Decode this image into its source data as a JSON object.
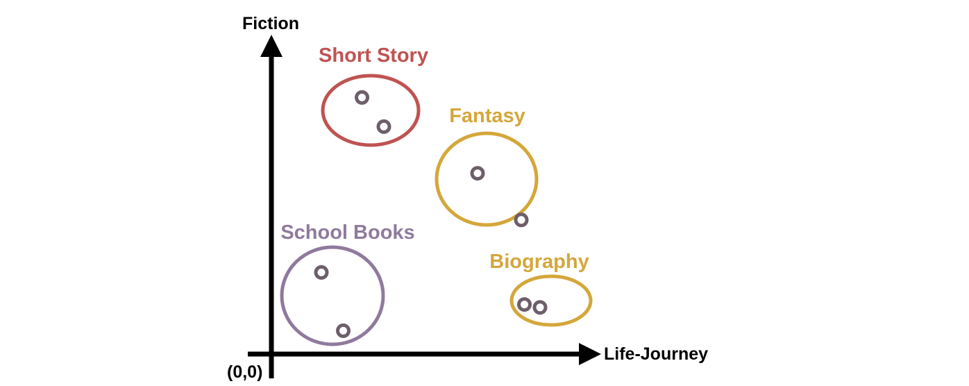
{
  "axes": {
    "y_label": "Fiction",
    "x_label": "Life-Journey",
    "origin_label": "(0,0)"
  },
  "point_color": "#6d5f6a",
  "clusters": [
    {
      "label": "Short Story",
      "color": "#bf5351",
      "points": [
        {
          "x": 0.29,
          "y": 0.88
        },
        {
          "x": 0.36,
          "y": 0.78
        }
      ]
    },
    {
      "label": "Fantasy",
      "color": "#d4a73a",
      "points": [
        {
          "x": 0.66,
          "y": 0.62
        },
        {
          "x": 0.8,
          "y": 0.46
        }
      ]
    },
    {
      "label": "School Books",
      "color": "#8f7a9d",
      "points": [
        {
          "x": 0.16,
          "y": 0.28
        },
        {
          "x": 0.23,
          "y": 0.08
        }
      ]
    },
    {
      "label": "Biography",
      "color": "#d4a73a",
      "points": [
        {
          "x": 0.81,
          "y": 0.17
        },
        {
          "x": 0.86,
          "y": 0.16
        }
      ]
    }
  ]
}
